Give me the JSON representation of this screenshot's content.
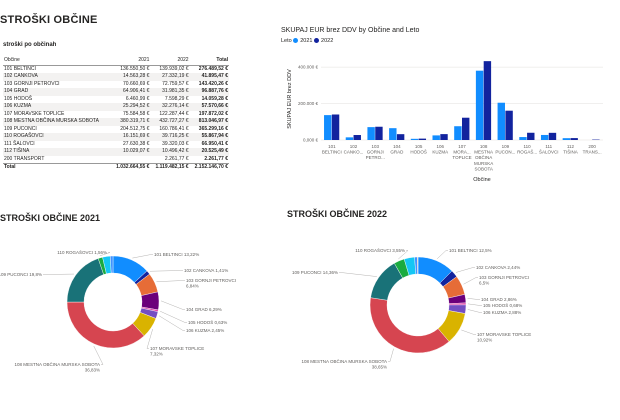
{
  "page": {
    "title": "STROŠKI OBČINE"
  },
  "table": {
    "title": "stroški po občinah",
    "columns": [
      "Občine",
      "2021",
      "2022",
      "Total"
    ],
    "rows": [
      [
        "101 BELTINCI",
        "136.550,50 €",
        "139.939,02 €",
        "276.489,52 €"
      ],
      [
        "102 CANKOVA",
        "14.563,28 €",
        "27.332,19 €",
        "41.895,47 €"
      ],
      [
        "103 GORNJI PETROVCI",
        "70.660,69 €",
        "72.759,57 €",
        "143.420,26 €"
      ],
      [
        "104 GRAD",
        "64.906,41 €",
        "31.981,35 €",
        "96.887,76 €"
      ],
      [
        "105 HODOŠ",
        "6.460,99 €",
        "7.598,29 €",
        "14.059,28 €"
      ],
      [
        "106 KUZMA",
        "25.294,52 €",
        "32.276,14 €",
        "57.570,66 €"
      ],
      [
        "107 MORAVSKE TOPLICE",
        "75.584,58 €",
        "122.287,44 €",
        "197.872,02 €"
      ],
      [
        "108 MESTNA OBČINA MURSKA SOBOTA",
        "380.319,71 €",
        "432.727,27 €",
        "813.046,97 €"
      ],
      [
        "109 PUCONCI",
        "204.512,75 €",
        "160.786,41 €",
        "365.299,16 €"
      ],
      [
        "110 ROGAŠOVCI",
        "16.151,69 €",
        "39.716,25 €",
        "55.867,94 €"
      ],
      [
        "111 ŠALOVCI",
        "27.630,38 €",
        "39.320,03 €",
        "66.950,41 €"
      ],
      [
        "112 TIŠINA",
        "10.029,07 €",
        "10.496,42 €",
        "20.525,49 €"
      ],
      [
        "200 TRANSPORT",
        "",
        "2.261,77 €",
        "2.261,77 €"
      ]
    ],
    "total": [
      "Total",
      "1.032.664,55 €",
      "1.119.482,15 €",
      "2.152.146,70 €"
    ]
  },
  "bar_chart_title": "SKUPAJ EUR brez DDV by Občine and Leto",
  "pie_2021_title": "STROŠKI OBČINE 2021",
  "pie_2022_title": "STROŠKI OBČINE 2022",
  "chart_data": [
    {
      "type": "bar",
      "title": "SKUPAJ EUR brez DDV by Občine and Leto",
      "xlabel": "Občine",
      "ylabel": "SKUPAJ EUR brez DDV",
      "legend_title": "Leto",
      "legend_position": "top-left",
      "categories": [
        "101 BELTINCI",
        "102 CANKO...",
        "103 GORNJI PETRO...",
        "104 GRAD",
        "105 HODOŠ",
        "106 KUZMA",
        "107 MORA... TOPLICE",
        "108 MESTNA OBČINA MURSKA SOBOTA",
        "109 PUCON...",
        "110 ROGAŠ...",
        "111 ŠALOVCI",
        "112 TIŠINA",
        "200 TRANS..."
      ],
      "series": [
        {
          "name": "2021",
          "color": "#118DFF",
          "values": [
            136550.5,
            14563.28,
            70660.69,
            64906.41,
            6460.99,
            25294.52,
            75584.58,
            380319.71,
            204512.75,
            16151.69,
            27630.38,
            10029.07,
            0
          ]
        },
        {
          "name": "2022",
          "color": "#12239E",
          "values": [
            139939.02,
            27332.19,
            72759.57,
            31981.35,
            7598.29,
            32276.14,
            122287.44,
            432727.27,
            160786.41,
            39716.25,
            39320.03,
            10496.42,
            2261.77
          ]
        }
      ],
      "yticks": [
        0,
        200000,
        400000
      ],
      "ytick_labels": [
        "0,000 €",
        "200.000 €",
        "400.000 €"
      ],
      "ylim": [
        0,
        450000
      ]
    },
    {
      "type": "pie",
      "title": "STROŠKI OBČINE 2021",
      "labels": [
        "101 BELTINCI",
        "102 CANKOVA",
        "103 GORNJI PETROVCI",
        "104 GRAD",
        "105 HODOŠ",
        "106 KUZMA",
        "107 MORAVSKE TOPLICE",
        "108 MESTNA OBČINA MURSKA SOBOTA",
        "109 PUCONCI",
        "110 ROGAŠOVCI",
        "111 ŠALOVCI",
        "112 TIŠINA"
      ],
      "values": [
        136550.5,
        14563.28,
        70660.69,
        64906.41,
        6460.99,
        25294.52,
        75584.58,
        380319.71,
        204512.75,
        16151.69,
        27630.38,
        10029.07
      ],
      "colors": [
        "#118DFF",
        "#12239E",
        "#E66C37",
        "#6B007B",
        "#E044A7",
        "#744EC2",
        "#D9B300",
        "#D64550",
        "#197278",
        "#1AAB40",
        "#15C6F4",
        "#4092FF"
      ],
      "data_labels": [
        {
          "slice": 0,
          "text": "101 BELTINCI 13,22%"
        },
        {
          "slice": 1,
          "text": "102 CANKOVA 1,41%"
        },
        {
          "slice": 2,
          "text": "103 GORNJI PETROVCI 6,84%"
        },
        {
          "slice": 3,
          "text": "104 GRAD 6,29%"
        },
        {
          "slice": 4,
          "text": "105 HODOŠ 0,63%"
        },
        {
          "slice": 5,
          "text": "106 KUZMA 2,45%"
        },
        {
          "slice": 6,
          "text": "107 MORAVSKE TOPLICE 7,32%"
        },
        {
          "slice": 7,
          "text": "108 MESTNA OBČINA MURSKA SOBOTA 36,83%"
        },
        {
          "slice": 8,
          "text": "109 PUCONCI 19,8%"
        },
        {
          "slice": 9,
          "text": "110 ROGAŠOVCI 1,56%"
        }
      ]
    },
    {
      "type": "pie",
      "title": "STROŠKI OBČINE 2022",
      "labels": [
        "101 BELTINCI",
        "102 CANKOVA",
        "103 GORNJI PETROVCI",
        "104 GRAD",
        "105 HODOŠ",
        "106 KUZMA",
        "107 MORAVSKE TOPLICE",
        "108 MESTNA OBČINA MURSKA SOBOTA",
        "109 PUCONCI",
        "110 ROGAŠOVCI",
        "111 ŠALOVCI",
        "112 TIŠINA",
        "200 TRANSPORT"
      ],
      "values": [
        139939.02,
        27332.19,
        72759.57,
        31981.35,
        7598.29,
        32276.14,
        122287.44,
        432727.27,
        160786.41,
        39716.25,
        39320.03,
        10496.42,
        2261.77
      ],
      "colors": [
        "#118DFF",
        "#12239E",
        "#E66C37",
        "#6B007B",
        "#E044A7",
        "#744EC2",
        "#D9B300",
        "#D64550",
        "#197278",
        "#1AAB40",
        "#15C6F4",
        "#4092FF",
        "#FF9F5A"
      ],
      "data_labels": [
        {
          "slice": 0,
          "text": "101 BELTINCI 12,5%"
        },
        {
          "slice": 1,
          "text": "102 CANKOVA 2,44%"
        },
        {
          "slice": 2,
          "text": "103 GORNJI PETROVCI 6,5%"
        },
        {
          "slice": 3,
          "text": "104 GRAD 2,86%"
        },
        {
          "slice": 4,
          "text": "105 HODOŠ 0,68%"
        },
        {
          "slice": 5,
          "text": "106 KUZMA 2,88%"
        },
        {
          "slice": 6,
          "text": "107 MORAVSKE TOPLICE 10,92%"
        },
        {
          "slice": 7,
          "text": "108 MESTNA OBČINA MURSKA SOBOTA 38,65%"
        },
        {
          "slice": 8,
          "text": "109 PUCONCI 14,36%"
        },
        {
          "slice": 9,
          "text": "110 ROGAŠOVCI 3,55%"
        }
      ]
    }
  ]
}
